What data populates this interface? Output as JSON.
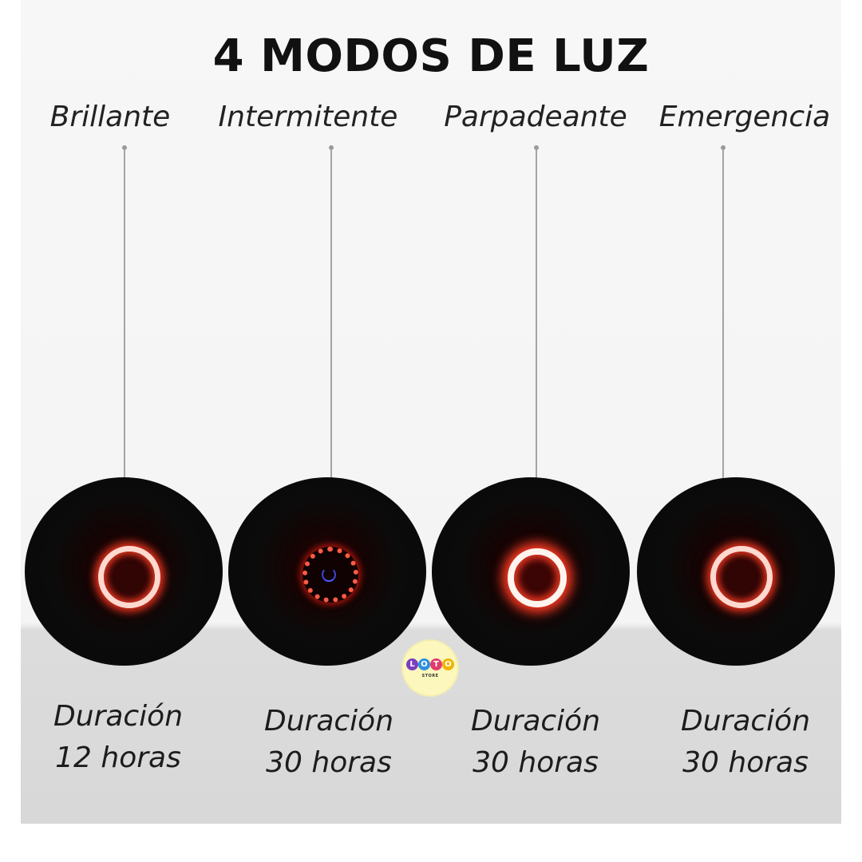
{
  "title": "4 MODOS DE LUZ",
  "modes": [
    {
      "label": "Brillante",
      "duration_title": "Duración",
      "duration_value": "12 horas",
      "ring_style": "solid"
    },
    {
      "label": "Intermitente",
      "duration_title": "Duración",
      "duration_value": "30 horas",
      "ring_style": "dotted"
    },
    {
      "label": "Parpadeante",
      "duration_title": "Duración",
      "duration_value": "30 horas",
      "ring_style": "bright"
    },
    {
      "label": "Emergencia",
      "duration_title": "Duración",
      "duration_value": "30 horas",
      "ring_style": "solid"
    }
  ],
  "logo": {
    "letters": [
      "L",
      "O",
      "T",
      "O"
    ],
    "letter_colors": [
      "#7b3fbf",
      "#2f8fe0",
      "#e23b6b",
      "#f0b400"
    ],
    "subtitle": "STORE",
    "background": "#fbf7bd"
  },
  "colors": {
    "ring_glow": "#ff3b24",
    "disc": "#0b0b0b",
    "background_top": "#f6f6f6",
    "background_bottom": "#d9d9d9"
  }
}
